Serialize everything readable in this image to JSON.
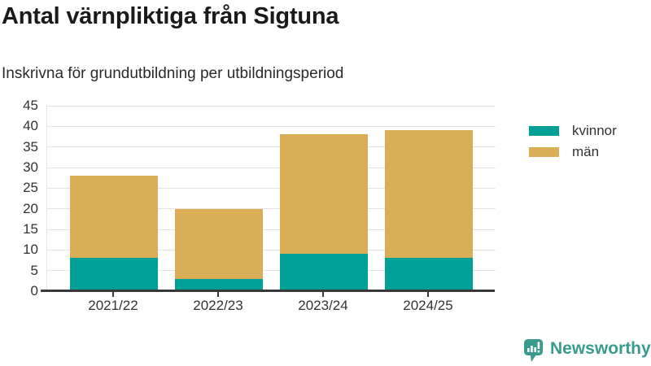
{
  "title": "Antal värnpliktiga från Sigtuna",
  "subtitle": "Inskrivna för grundutbildning per utbildningsperiod",
  "colors": {
    "kvinnor": "#00a096",
    "man": "#d9ae56",
    "grid": "#e4e4e4",
    "axis": "#383838",
    "tick_text": "#333333",
    "title_text": "#1a1a1a",
    "brand_teal": "#399b8e"
  },
  "chart_data": {
    "type": "bar",
    "stacked": true,
    "categories": [
      "2021/22",
      "2022/23",
      "2023/24",
      "2024/25"
    ],
    "series": [
      {
        "name": "kvinnor",
        "color": "#00a096",
        "values": [
          8,
          3,
          9,
          8
        ]
      },
      {
        "name": "män",
        "color": "#d9ae56",
        "values": [
          20,
          17,
          29,
          31
        ]
      }
    ],
    "totals": [
      28,
      20,
      38,
      39
    ],
    "title": "Antal värnpliktiga från Sigtuna",
    "subtitle": "Inskrivna för grundutbildning per utbildningsperiod",
    "xlabel": "",
    "ylabel": "",
    "ylim": [
      0,
      45
    ],
    "yticks": [
      0,
      5,
      10,
      15,
      20,
      25,
      30,
      35,
      40,
      45
    ],
    "grid": true,
    "legend_position": "right"
  },
  "legend": {
    "items": [
      {
        "label": "kvinnor",
        "color": "#00a096"
      },
      {
        "label": "män",
        "color": "#d9ae56"
      }
    ]
  },
  "footer": {
    "brand_name": "Newsworthy",
    "logo_icon": "bar-chart-speech-bubble-icon"
  }
}
